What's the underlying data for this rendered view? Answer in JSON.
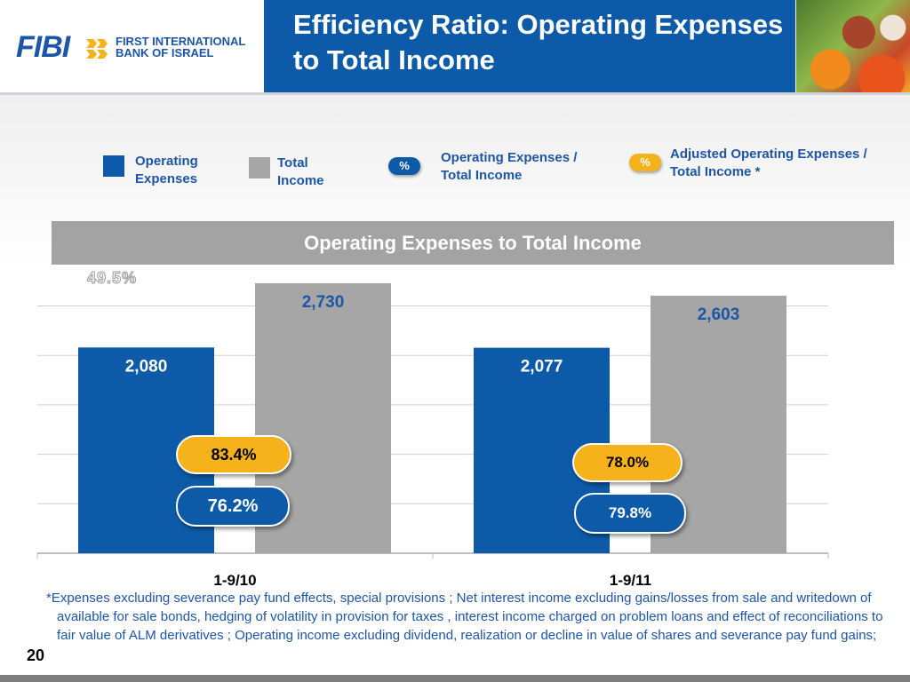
{
  "logo": {
    "brand": "FIBI",
    "line1": "FIRST INTERNATIONAL",
    "line2": "BANK OF ISRAEL"
  },
  "header": {
    "title": "Efficiency Ratio: Operating Expenses to Total Income"
  },
  "legend": [
    {
      "kind": "swatch",
      "color": "#0c5aa8",
      "label_lines": [
        "Operating",
        "Expenses"
      ]
    },
    {
      "kind": "swatch",
      "color": "#a6a6a6",
      "label_lines": [
        "Total",
        "Income"
      ]
    },
    {
      "kind": "pill",
      "symbol": "%",
      "color": "#0c5aa8",
      "label_lines": [
        "Operating Expenses /",
        "Total Income"
      ]
    },
    {
      "kind": "pill",
      "symbol": "%",
      "color": "#f5b21b",
      "label_lines": [
        "Adjusted Operating Expenses /",
        "Total Income *"
      ]
    }
  ],
  "ghost_text": "49.5%",
  "chart_data": {
    "type": "bar",
    "title": "Operating Expenses to Total Income",
    "categories": [
      "1-9/10",
      "1-9/11"
    ],
    "series": [
      {
        "name": "Operating Expenses",
        "color": "#0c5aa8",
        "values": [
          2080,
          2077
        ],
        "labels": [
          "2,080",
          "2,077"
        ]
      },
      {
        "name": "Total Income",
        "color": "#a6a6a6",
        "values": [
          2730,
          2603
        ],
        "labels": [
          "2,730",
          "2,603"
        ]
      }
    ],
    "ratios": {
      "operating_expenses_to_total_income": [
        "76.2%",
        "79.8%"
      ],
      "adjusted_operating_expenses_to_total_income": [
        "83.4%",
        "78.0%"
      ]
    },
    "ylim": [
      0,
      2900
    ],
    "grid": true,
    "legend_placement": "top"
  },
  "footnote": "*Expenses excluding severance pay fund effects, special provisions ; Net interest income excluding gains/losses from sale and writedown of available for sale bonds, hedging of volatility in provision for taxes , interest income charged on problem loans and effect of reconciliations to fair value of  ALM derivatives ; Operating income excluding dividend, realization or decline in value of shares and severance pay fund gains;",
  "page_number": "20"
}
